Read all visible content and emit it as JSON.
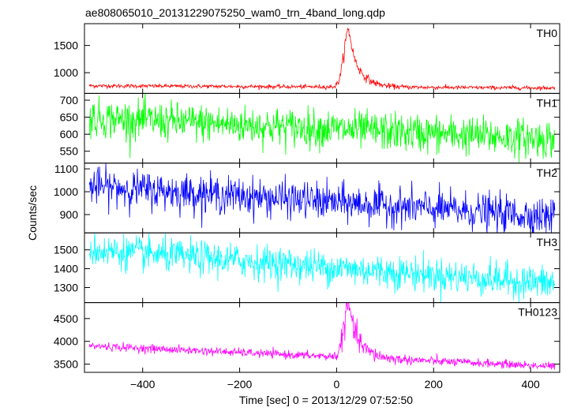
{
  "chart_data": {
    "type": "line",
    "title": "ae808065010_20131229075250_wam0_trn_4band_long.qdp",
    "xlabel": "Time [sec] 0 = 2013/12/29 07:52:50",
    "ylabel": "Counts/sec",
    "xlim": [
      -520,
      460
    ],
    "x_ticks": [
      -400,
      -200,
      0,
      200,
      400
    ],
    "panels": [
      {
        "name": "TH0",
        "color": "#ff0000",
        "ylim": [
          620,
          1900
        ],
        "y_ticks": [
          1000,
          1500
        ],
        "profile": {
          "base_start": 760,
          "base_end": 720,
          "noise": 18,
          "peak": 1780,
          "peak_time": 25,
          "rise": 14,
          "decay": 22
        }
      },
      {
        "name": "TH1",
        "color": "#00ff00",
        "ylim": [
          515,
          720
        ],
        "y_ticks": [
          550,
          600,
          650,
          700
        ],
        "profile": {
          "base_start": 648,
          "base_end": 585,
          "noise": 28,
          "peak": 0,
          "peak_time": 25,
          "rise": 14,
          "decay": 22
        }
      },
      {
        "name": "TH2",
        "color": "#0000ff",
        "ylim": [
          820,
          1125
        ],
        "y_ticks": [
          900,
          1000,
          1100
        ],
        "profile": {
          "base_start": 1025,
          "base_end": 890,
          "noise": 40,
          "peak": 0,
          "peak_time": 25,
          "rise": 14,
          "decay": 22
        }
      },
      {
        "name": "TH3",
        "color": "#00ffff",
        "ylim": [
          1220,
          1590
        ],
        "y_ticks": [
          1300,
          1400,
          1500
        ],
        "profile": {
          "base_start": 1500,
          "base_end": 1320,
          "noise": 45,
          "peak": 0,
          "peak_time": 25,
          "rise": 14,
          "decay": 22
        }
      },
      {
        "name": "TH0123",
        "color": "#ff00ff",
        "ylim": [
          3320,
          4850
        ],
        "y_ticks": [
          3500,
          4000,
          4500
        ],
        "profile": {
          "base_start": 3900,
          "base_end": 3450,
          "noise": 45,
          "peak": 4780,
          "peak_time": 25,
          "rise": 14,
          "decay": 22
        }
      }
    ],
    "series_time_range": [
      -510,
      450
    ],
    "series_step": 1
  }
}
